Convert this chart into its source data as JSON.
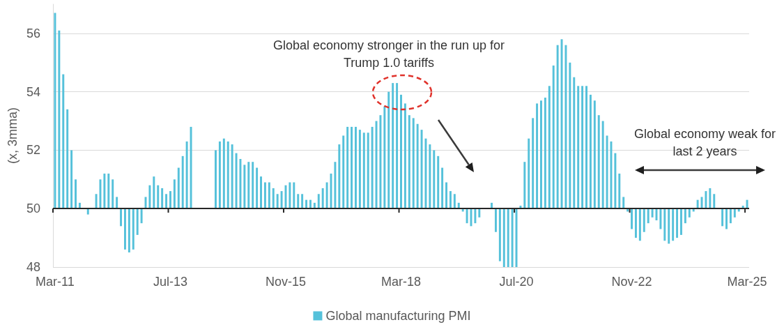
{
  "chart_data": {
    "type": "bar",
    "ylabel": "(x, 3mma)",
    "categories": [
      "Mar-11",
      null,
      null,
      null,
      null,
      null,
      null,
      null,
      null,
      null,
      null,
      null,
      null,
      null,
      null,
      null,
      null,
      null,
      null,
      null,
      null,
      null,
      null,
      null,
      null,
      null,
      null,
      null,
      "Jul-13",
      null,
      null,
      null,
      null,
      null,
      null,
      null,
      null,
      null,
      null,
      null,
      null,
      null,
      null,
      null,
      null,
      null,
      null,
      null,
      null,
      null,
      null,
      null,
      null,
      null,
      null,
      null,
      "Nov-15",
      null,
      null,
      null,
      null,
      null,
      null,
      null,
      null,
      null,
      null,
      null,
      null,
      null,
      null,
      null,
      null,
      null,
      null,
      null,
      null,
      null,
      null,
      null,
      null,
      null,
      null,
      null,
      "Mar-18",
      null,
      null,
      null,
      null,
      null,
      null,
      null,
      null,
      null,
      null,
      null,
      null,
      null,
      null,
      null,
      null,
      null,
      null,
      null,
      null,
      null,
      null,
      null,
      null,
      null,
      null,
      null,
      "Jul-20",
      null,
      null,
      null,
      null,
      null,
      null,
      null,
      null,
      null,
      null,
      null,
      null,
      null,
      null,
      null,
      null,
      null,
      null,
      null,
      null,
      null,
      null,
      null,
      null,
      null,
      null,
      null,
      "Nov-22",
      null,
      null,
      null,
      null,
      null,
      null,
      null,
      null,
      null,
      null,
      null,
      null,
      null,
      null,
      null,
      null,
      null,
      null,
      null,
      null,
      null,
      null,
      null,
      null,
      null,
      null,
      null,
      "Mar-25"
    ],
    "series": [
      {
        "name": "Global manufacturing PMI",
        "color": "#55c1da",
        "values": [
          6.7,
          6.1,
          4.6,
          3.4,
          2.0,
          1.0,
          0.2,
          null,
          -0.2,
          null,
          0.5,
          1.0,
          1.2,
          1.2,
          1.0,
          0.4,
          -0.6,
          -1.4,
          -1.5,
          -1.4,
          -0.9,
          -0.5,
          0.4,
          0.8,
          1.1,
          0.8,
          0.7,
          0.5,
          0.6,
          1.0,
          1.4,
          1.8,
          2.3,
          2.8,
          null,
          null,
          null,
          null,
          null,
          2.0,
          2.3,
          2.4,
          2.3,
          2.2,
          1.9,
          1.7,
          1.5,
          1.6,
          1.6,
          1.4,
          1.1,
          0.9,
          0.9,
          0.7,
          0.5,
          0.6,
          0.8,
          0.9,
          0.9,
          0.5,
          0.5,
          0.3,
          0.3,
          0.2,
          0.5,
          0.7,
          0.9,
          1.2,
          1.6,
          2.2,
          2.5,
          2.8,
          2.8,
          2.8,
          2.7,
          2.6,
          2.6,
          2.8,
          3.0,
          3.2,
          3.5,
          4.0,
          4.3,
          4.3,
          3.9,
          3.6,
          3.2,
          3.1,
          2.9,
          2.7,
          2.4,
          2.2,
          2.0,
          1.8,
          1.4,
          0.9,
          0.6,
          0.5,
          0.2,
          -0.1,
          -0.5,
          -0.6,
          -0.5,
          -0.3,
          null,
          null,
          0.2,
          -0.8,
          -1.8,
          -2,
          -2,
          -2,
          -2,
          0.1,
          1.6,
          2.4,
          3.1,
          3.6,
          3.7,
          3.8,
          4.2,
          4.9,
          5.6,
          5.8,
          5.6,
          5.0,
          4.5,
          4.2,
          4.2,
          4.2,
          3.9,
          3.7,
          3.2,
          3.0,
          2.5,
          2.3,
          1.9,
          1.2,
          0.4,
          -0.1,
          -0.7,
          -1.0,
          -1.1,
          -0.8,
          -0.5,
          -0.3,
          -0.4,
          -0.7,
          -1.1,
          -1.2,
          -1.1,
          -1.0,
          -0.9,
          -0.5,
          -0.3,
          -0.1,
          0.3,
          0.4,
          0.6,
          0.7,
          0.5,
          null,
          -0.6,
          -0.7,
          -0.5,
          -0.3,
          -0.1,
          0.1,
          0.3
        ],
        "base": [
          50,
          50,
          50,
          50,
          50,
          50,
          50,
          null,
          50,
          null,
          50,
          50,
          50,
          50,
          50,
          50,
          50,
          50,
          50,
          50,
          50,
          50,
          50,
          50,
          50,
          50,
          50,
          50,
          50,
          50,
          50,
          50,
          50,
          50,
          null,
          null,
          null,
          null,
          null,
          50,
          50,
          50,
          50,
          50,
          50,
          50,
          50,
          50,
          50,
          50,
          50,
          50,
          50,
          50,
          50,
          50,
          50,
          50,
          50,
          50,
          50,
          50,
          50,
          50,
          50,
          50,
          50,
          50,
          50,
          50,
          50,
          50,
          50,
          50,
          50,
          50,
          50,
          50,
          50,
          50,
          50,
          50,
          50,
          50,
          50,
          50,
          50,
          50,
          50,
          50,
          50,
          50,
          50,
          50,
          50,
          50,
          50,
          50,
          50,
          50,
          50,
          50,
          50,
          50,
          null,
          null,
          50,
          50,
          50,
          50,
          50,
          50,
          50,
          50,
          50,
          50,
          50,
          50,
          50,
          50,
          50,
          50,
          50,
          50,
          50,
          50,
          50,
          50,
          50,
          50,
          50,
          50,
          50,
          50,
          50,
          50,
          50,
          50,
          50,
          50,
          50,
          50,
          50,
          50,
          50,
          50,
          50,
          50,
          50,
          50,
          50,
          50,
          50,
          50,
          50,
          50,
          50,
          50,
          50,
          50,
          50,
          null,
          50,
          50,
          50,
          50,
          50,
          50,
          50
        ]
      }
    ],
    "ref_lines": [
      {
        "axis": "y",
        "value": 50,
        "color": "#262626"
      }
    ],
    "ylim": [
      48,
      57
    ],
    "yticks": [
      48,
      50,
      52,
      54,
      56
    ],
    "grid": "y",
    "legend": "bottom",
    "annotations": [
      "Global economy stronger in the run up for Trump 1.0 tariffs",
      "Global economy weak for last 2 years"
    ]
  }
}
